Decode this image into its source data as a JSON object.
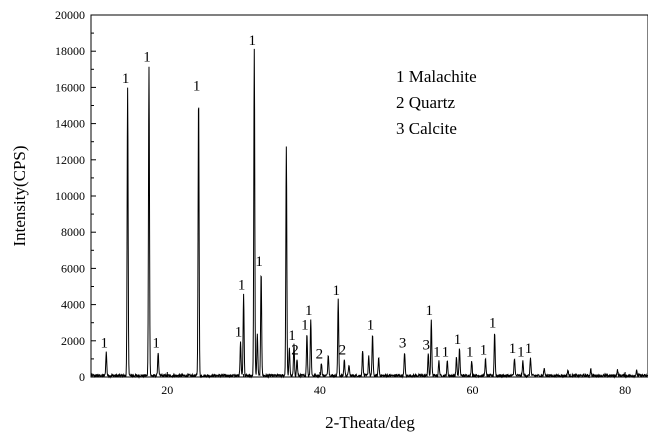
{
  "chart_data": {
    "type": "line",
    "title": "",
    "xlabel": "2-Theata/deg",
    "ylabel": "Intensity(CPS)",
    "xlim": [
      10,
      83
    ],
    "ylim": [
      0,
      20000
    ],
    "x_ticks": [
      20,
      40,
      60,
      80
    ],
    "y_ticks": [
      0,
      2000,
      4000,
      6000,
      8000,
      10000,
      12000,
      14000,
      16000,
      18000,
      20000
    ],
    "grid": false,
    "legend_text": [
      "1 Malachite",
      "2 Quartz",
      "3 Calcite"
    ],
    "legend_position": "top-right",
    "line_color": "#000000",
    "baseline_noise_intensity": 150,
    "peaks": [
      {
        "x": 12.0,
        "y": 1300,
        "label": "1"
      },
      {
        "x": 14.8,
        "y": 15900,
        "label": "1"
      },
      {
        "x": 17.6,
        "y": 17100,
        "label": "1"
      },
      {
        "x": 18.8,
        "y": 1300,
        "label": "1"
      },
      {
        "x": 24.1,
        "y": 15500,
        "label": "1"
      },
      {
        "x": 29.6,
        "y": 1900,
        "label": "1"
      },
      {
        "x": 30.0,
        "y": 4500,
        "label": "1"
      },
      {
        "x": 31.4,
        "y": 18000,
        "label": "1"
      },
      {
        "x": 31.8,
        "y": 2300,
        "label": ""
      },
      {
        "x": 32.3,
        "y": 5800,
        "label": "1"
      },
      {
        "x": 35.6,
        "y": 12700,
        "label": ""
      },
      {
        "x": 36.0,
        "y": 1500,
        "label": ""
      },
      {
        "x": 36.6,
        "y": 1700,
        "label": "1"
      },
      {
        "x": 37.0,
        "y": 900,
        "label": "2"
      },
      {
        "x": 38.3,
        "y": 2300,
        "label": "1"
      },
      {
        "x": 38.8,
        "y": 3100,
        "label": "1"
      },
      {
        "x": 40.2,
        "y": 700,
        "label": "2"
      },
      {
        "x": 41.1,
        "y": 1200,
        "label": ""
      },
      {
        "x": 42.4,
        "y": 4200,
        "label": "1"
      },
      {
        "x": 43.2,
        "y": 900,
        "label": "2"
      },
      {
        "x": 43.8,
        "y": 600,
        "label": ""
      },
      {
        "x": 45.6,
        "y": 1400,
        "label": ""
      },
      {
        "x": 46.4,
        "y": 1100,
        "label": ""
      },
      {
        "x": 46.9,
        "y": 2300,
        "label": "1"
      },
      {
        "x": 47.7,
        "y": 1000,
        "label": ""
      },
      {
        "x": 51.1,
        "y": 1300,
        "label": "3"
      },
      {
        "x": 54.2,
        "y": 1200,
        "label": "3"
      },
      {
        "x": 54.6,
        "y": 3100,
        "label": "1"
      },
      {
        "x": 55.6,
        "y": 800,
        "label": "1"
      },
      {
        "x": 56.7,
        "y": 800,
        "label": "1"
      },
      {
        "x": 57.9,
        "y": 1000,
        "label": ""
      },
      {
        "x": 58.3,
        "y": 1500,
        "label": "1"
      },
      {
        "x": 59.9,
        "y": 800,
        "label": "1"
      },
      {
        "x": 61.7,
        "y": 900,
        "label": "1"
      },
      {
        "x": 62.9,
        "y": 2400,
        "label": "1"
      },
      {
        "x": 65.5,
        "y": 1000,
        "label": "1"
      },
      {
        "x": 66.6,
        "y": 800,
        "label": "1"
      },
      {
        "x": 67.6,
        "y": 1000,
        "label": "1"
      },
      {
        "x": 69.4,
        "y": 400,
        "label": ""
      },
      {
        "x": 72.5,
        "y": 300,
        "label": ""
      },
      {
        "x": 75.5,
        "y": 350,
        "label": ""
      },
      {
        "x": 79.0,
        "y": 300,
        "label": ""
      },
      {
        "x": 81.5,
        "y": 250,
        "label": ""
      }
    ]
  }
}
